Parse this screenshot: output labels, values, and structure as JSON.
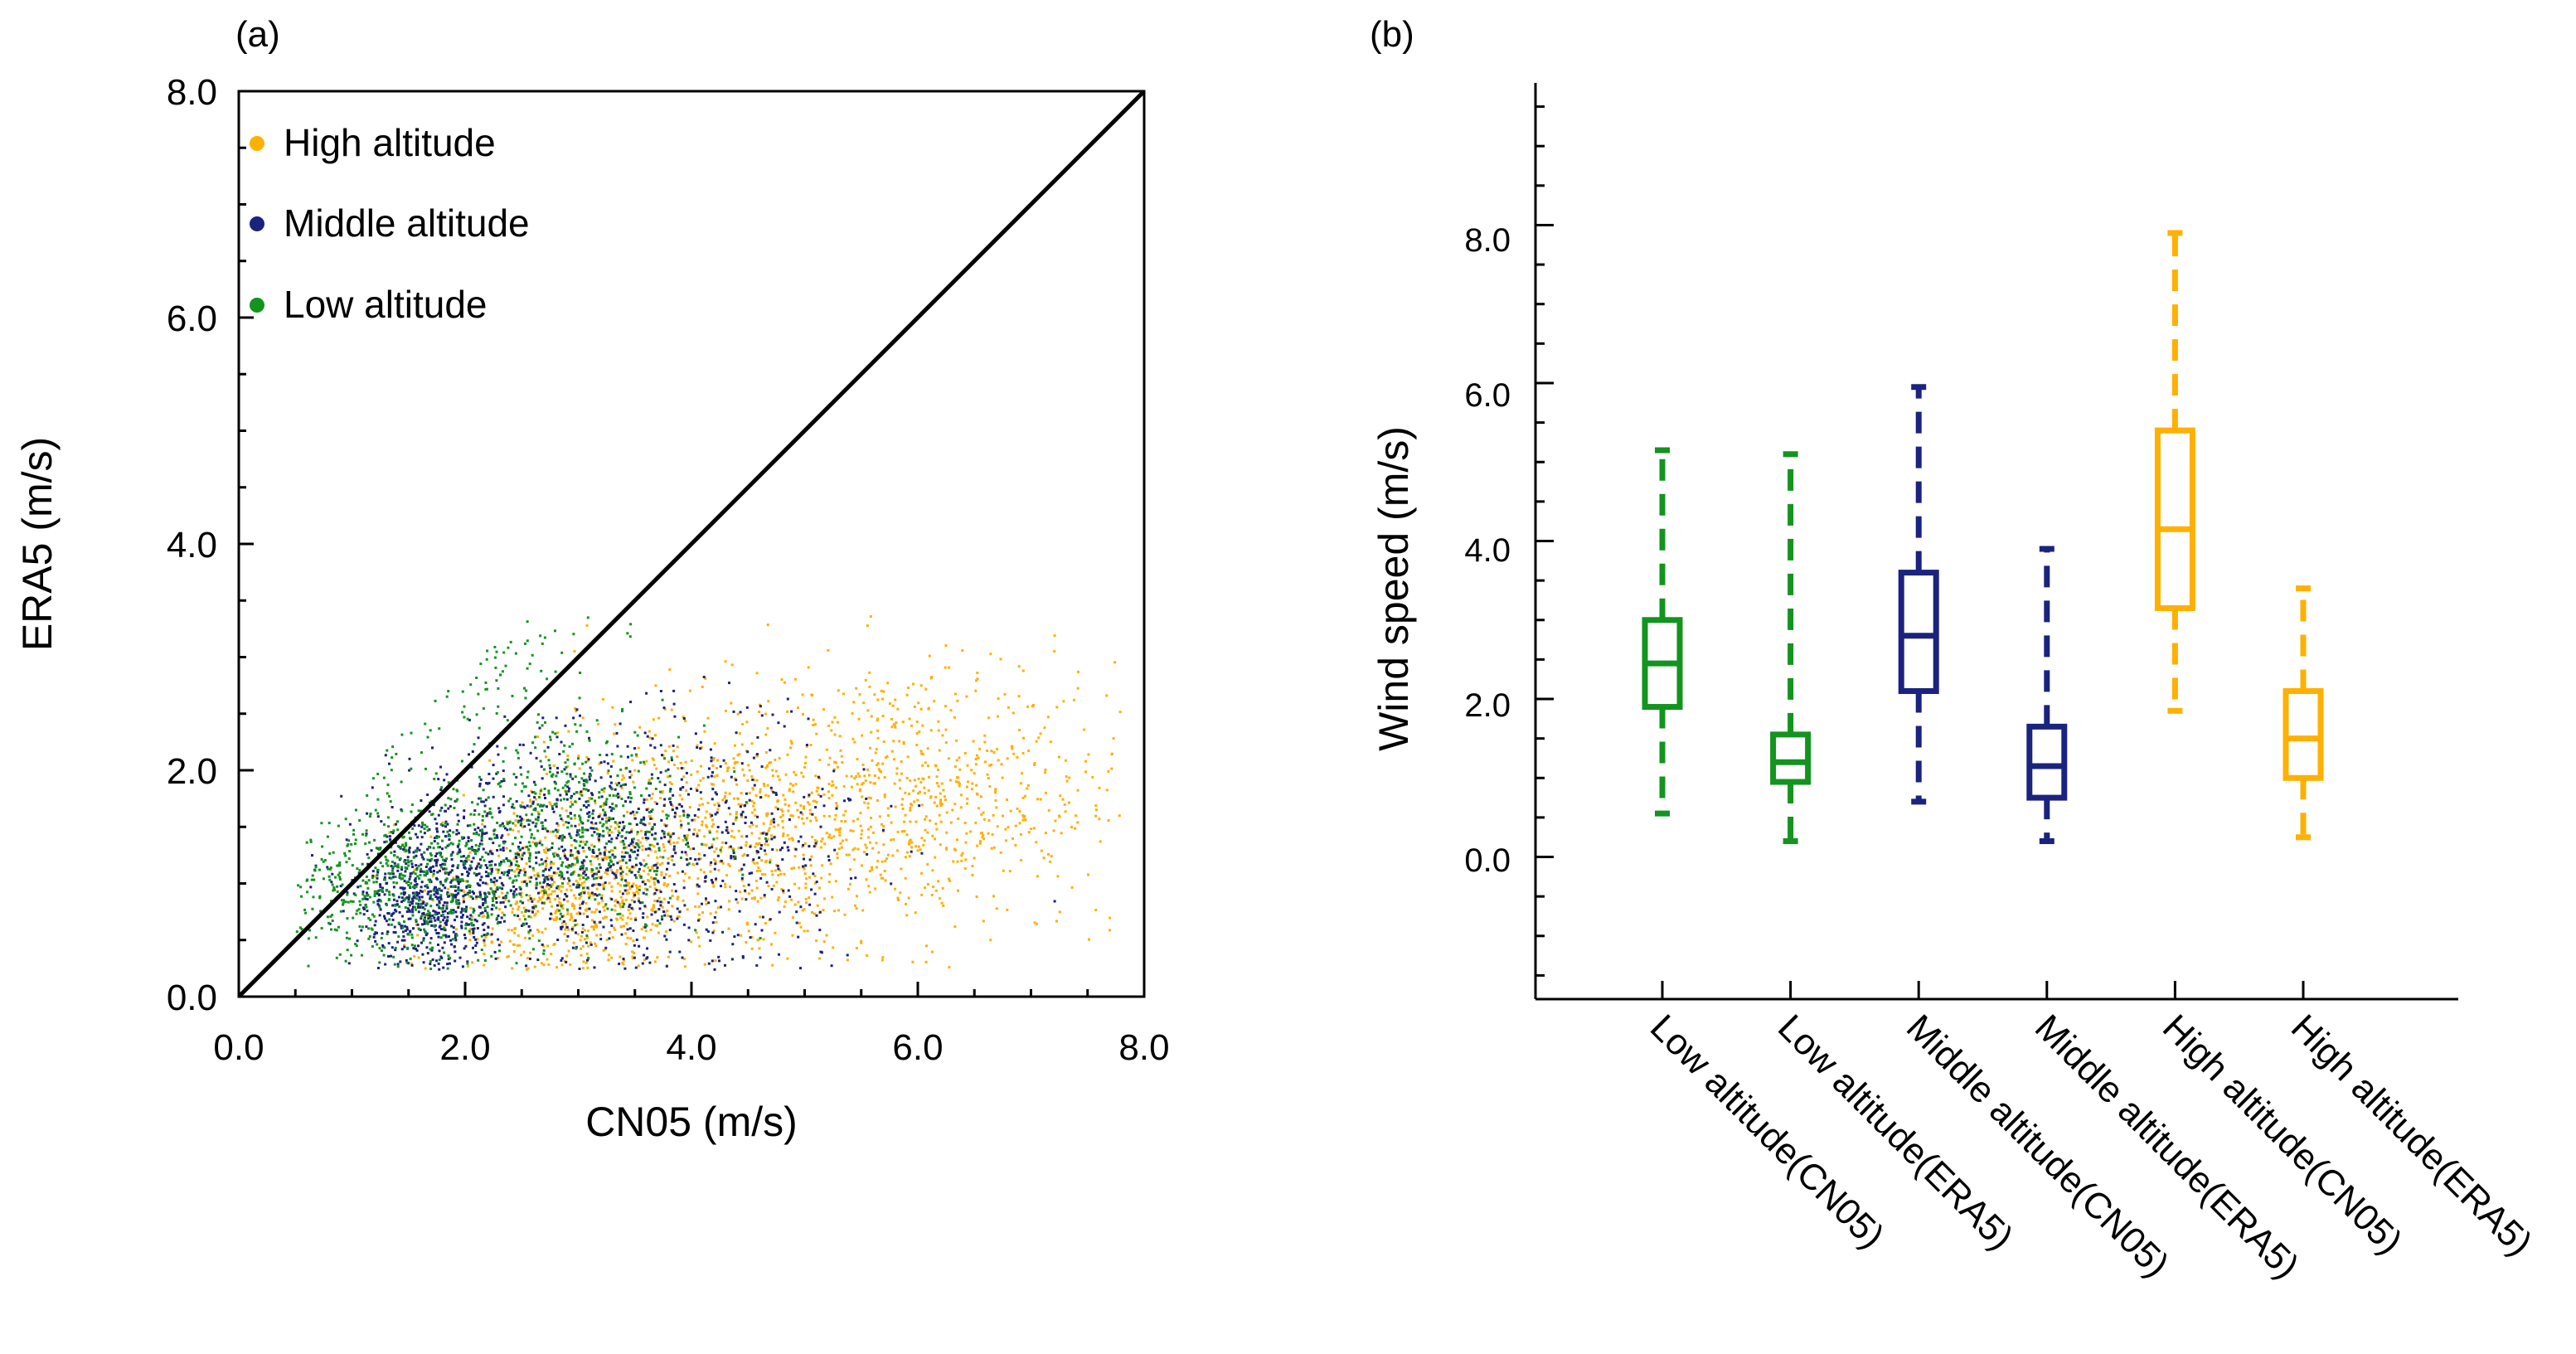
{
  "chart_data": [
    {
      "panel_label": "(a)",
      "type": "scatter",
      "xlabel": "CN05 (m/s)",
      "ylabel": "ERA5 (m/s)",
      "xlim": [
        0,
        8
      ],
      "ylim": [
        0,
        8
      ],
      "x_ticks": [
        "0.0",
        "2.0",
        "4.0",
        "6.0",
        "8.0"
      ],
      "y_ticks": [
        "0.0",
        "2.0",
        "4.0",
        "6.0",
        "8.0"
      ],
      "reference_line": {
        "label": "1:1 line",
        "from": [
          0,
          0
        ],
        "to": [
          8,
          8
        ]
      },
      "legend_position": "top-left",
      "series": [
        {
          "name": "High altitude",
          "color": "#FFB000",
          "clusters": [
            {
              "center": [
                2.9,
                0.9
              ],
              "spread": [
                0.6,
                0.35
              ],
              "count": 600
            },
            {
              "center": [
                4.3,
                1.5
              ],
              "spread": [
                0.8,
                0.55
              ],
              "count": 650
            },
            {
              "center": [
                6.0,
                1.8
              ],
              "spread": [
                0.9,
                0.6
              ],
              "count": 700
            }
          ]
        },
        {
          "name": "Middle altitude",
          "color": "#1A237E",
          "clusters": [
            {
              "center": [
                1.7,
                0.9
              ],
              "spread": [
                0.35,
                0.3
              ],
              "count": 650
            },
            {
              "center": [
                2.8,
                1.35
              ],
              "spread": [
                0.7,
                0.5
              ],
              "count": 650
            },
            {
              "center": [
                4.2,
                1.4
              ],
              "spread": [
                0.7,
                0.6
              ],
              "count": 350
            }
          ]
        },
        {
          "name": "Low altitude",
          "color": "#13941E",
          "clusters": [
            {
              "center": [
                1.5,
                1.0
              ],
              "spread": [
                0.5,
                0.35
              ],
              "count": 550
            },
            {
              "center": [
                2.9,
                1.5
              ],
              "spread": [
                0.6,
                0.45
              ],
              "count": 550
            },
            {
              "center": [
                2.2,
                2.9
              ],
              "spread": [
                0.5,
                0.4
              ],
              "count": 90
            }
          ]
        }
      ]
    },
    {
      "panel_label": "(b)",
      "type": "box",
      "ylabel": "Wind speed (m/s)",
      "ylim": [
        -1.8,
        9.8
      ],
      "y_ticks": [
        "0.0",
        "2.0",
        "4.0",
        "6.0",
        "8.0"
      ],
      "categories": [
        "Low altitude(CN05)",
        "Low altitude(ERA5)",
        "Middle altitude(CN05)",
        "Middle altitude(ERA5)",
        "High altitude(CN05)",
        "High altitude(ERA5)"
      ],
      "boxes": [
        {
          "color": "#13941E",
          "min": 0.55,
          "q1": 1.9,
          "median": 2.45,
          "q3": 3.0,
          "max": 5.15
        },
        {
          "color": "#13941E",
          "min": 0.2,
          "q1": 0.95,
          "median": 1.2,
          "q3": 1.55,
          "max": 5.1
        },
        {
          "color": "#1A237E",
          "min": 0.7,
          "q1": 2.1,
          "median": 2.8,
          "q3": 3.6,
          "max": 5.95
        },
        {
          "color": "#1A237E",
          "min": 0.2,
          "q1": 0.75,
          "median": 1.15,
          "q3": 1.65,
          "max": 3.9
        },
        {
          "color": "#FFB000",
          "min": 1.85,
          "q1": 3.15,
          "median": 4.15,
          "q3": 5.4,
          "max": 7.9
        },
        {
          "color": "#FFB000",
          "min": 0.25,
          "q1": 1.0,
          "median": 1.5,
          "q3": 2.1,
          "max": 3.4
        }
      ]
    }
  ]
}
